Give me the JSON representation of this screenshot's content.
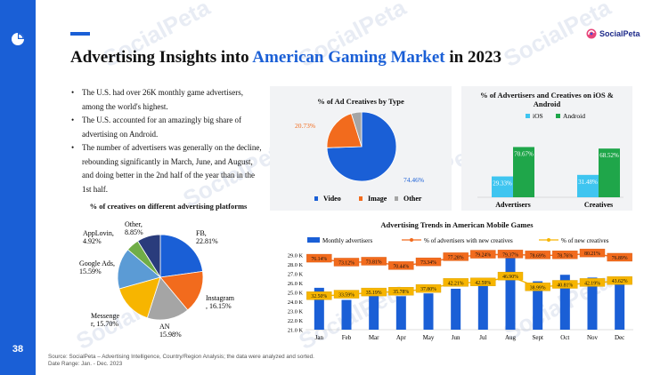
{
  "page": {
    "number": "38",
    "title_prefix": "Advertising Insights into ",
    "title_highlight": "American Gaming Market",
    "title_suffix": " in 2023",
    "brand": "SocialPeta",
    "watermark": "SocialPeta",
    "accent_color": "#1a5fd6",
    "icons": [
      "chart-logo-icon",
      "socialpeta-logo-icon"
    ]
  },
  "bullets": [
    "The U.S. had over 26K monthly game advertisers, among the world's highest.",
    "The U.S. accounted for an amazingly big share of advertising on Android.",
    "The number of advertisers was generally on the decline, rebounding significantly in March, June, and August, and doing better in the 2nd half of the year than in the 1st half."
  ],
  "source": {
    "line1": "Source: SocialPeta – Advertising Intelligence, Country/Region Analysis; the data were analyzed and sorted.",
    "line2": "Date Range: Jan. - Dec. 2023"
  },
  "chart_data": [
    {
      "type": "pie",
      "title": "% of creatives on different advertising platforms",
      "slices": [
        {
          "label": "FB, 22.81%",
          "value": 22.81,
          "color": "#1a5fd6"
        },
        {
          "label": "Instagram , 16.15%",
          "value": 16.15,
          "color": "#f26b1d"
        },
        {
          "label": "AN 15.98%",
          "value": 15.98,
          "color": "#a5a5a5"
        },
        {
          "label": "Messenger, 15.70%",
          "value": 15.7,
          "color": "#f7b500"
        },
        {
          "label": "Google Ads, 15.59%",
          "value": 15.59,
          "color": "#5b9bd5"
        },
        {
          "label": "AppLovin, 4.92%",
          "value": 4.92,
          "color": "#70ad47"
        },
        {
          "label": "Other, 8.85%",
          "value": 8.85,
          "color": "#2a3c7c"
        }
      ]
    },
    {
      "type": "pie",
      "title": "% of Ad Creatives by Type",
      "slices": [
        {
          "name": "Video",
          "value": 74.46,
          "color": "#1a5fd6"
        },
        {
          "name": "Image",
          "value": 20.73,
          "color": "#f26b1d"
        },
        {
          "name": "Other",
          "value": 4.81,
          "color": "#a5a5a5"
        }
      ],
      "data_labels": [
        "74.46%",
        "20.73%"
      ],
      "legend": [
        "Video",
        "Image",
        "Other"
      ],
      "legend_position": "bottom"
    },
    {
      "type": "bar",
      "title": "% of Advertisers and Creatives on iOS & Android",
      "categories": [
        "Advertisers",
        "Creatives"
      ],
      "series": [
        {
          "name": "iOS",
          "values": [
            29.33,
            31.48
          ],
          "labels": [
            "29.33%",
            "31.48%"
          ],
          "color": "#3fc5f0"
        },
        {
          "name": "Android",
          "values": [
            70.67,
            68.52
          ],
          "labels": [
            "70.67%",
            "68.52%"
          ],
          "color": "#1fa64a"
        }
      ],
      "ylim": [
        0,
        100
      ],
      "legend_position": "top"
    },
    {
      "type": "bar",
      "title": "Advertising Trends in American Mobile Games",
      "categories": [
        "Jan",
        "Feb",
        "Mar",
        "Apr",
        "May",
        "Jun",
        "Jul",
        "Aug",
        "Sept",
        "Oct",
        "Nov",
        "Dec"
      ],
      "yticks": [
        "21.0 K",
        "22.0 K",
        "23.0 K",
        "24.0 K",
        "25.0 K",
        "26.0 K",
        "27.0 K",
        "28.0 K",
        "29.0 K"
      ],
      "ylim": [
        21.0,
        29.5
      ],
      "series": [
        {
          "name": "Monthly advertisers",
          "values": [
            25.5,
            24.2,
            25.2,
            24.6,
            24.9,
            25.4,
            26.2,
            28.9,
            26.2,
            26.9,
            26.6,
            26.6
          ],
          "color": "#1a5fd6"
        },
        {
          "name": "% of advertisers with new creatives",
          "values": [
            76.14,
            73.12,
            73.81,
            70.44,
            73.34,
            77.28,
            79.24,
            79.37,
            78.69,
            78.76,
            80.21,
            76.89
          ],
          "labels": [
            "76.14%",
            "73.12%",
            "73.81%",
            "70.44%",
            "73.34%",
            "77.28%",
            "79.24%",
            "79.37%",
            "78.69%",
            "78.76%",
            "80.21%",
            "76.89%"
          ],
          "color": "#f26b1d"
        },
        {
          "name": "% of new creatives",
          "values": [
            32.5,
            33.59,
            35.19,
            35.78,
            37.8,
            42.21,
            42.59,
            46.9,
            38.99,
            40.81,
            42.19,
            43.62
          ],
          "labels": [
            "32.50%",
            "33.59%",
            "35.19%",
            "35.78%",
            "37.80%",
            "42.21%",
            "42.59%",
            "46.90%",
            "38.99%",
            "40.81%",
            "42.19%",
            "43.62%"
          ],
          "color": "#f7b500"
        }
      ],
      "legend_position": "top",
      "grid": false
    }
  ]
}
